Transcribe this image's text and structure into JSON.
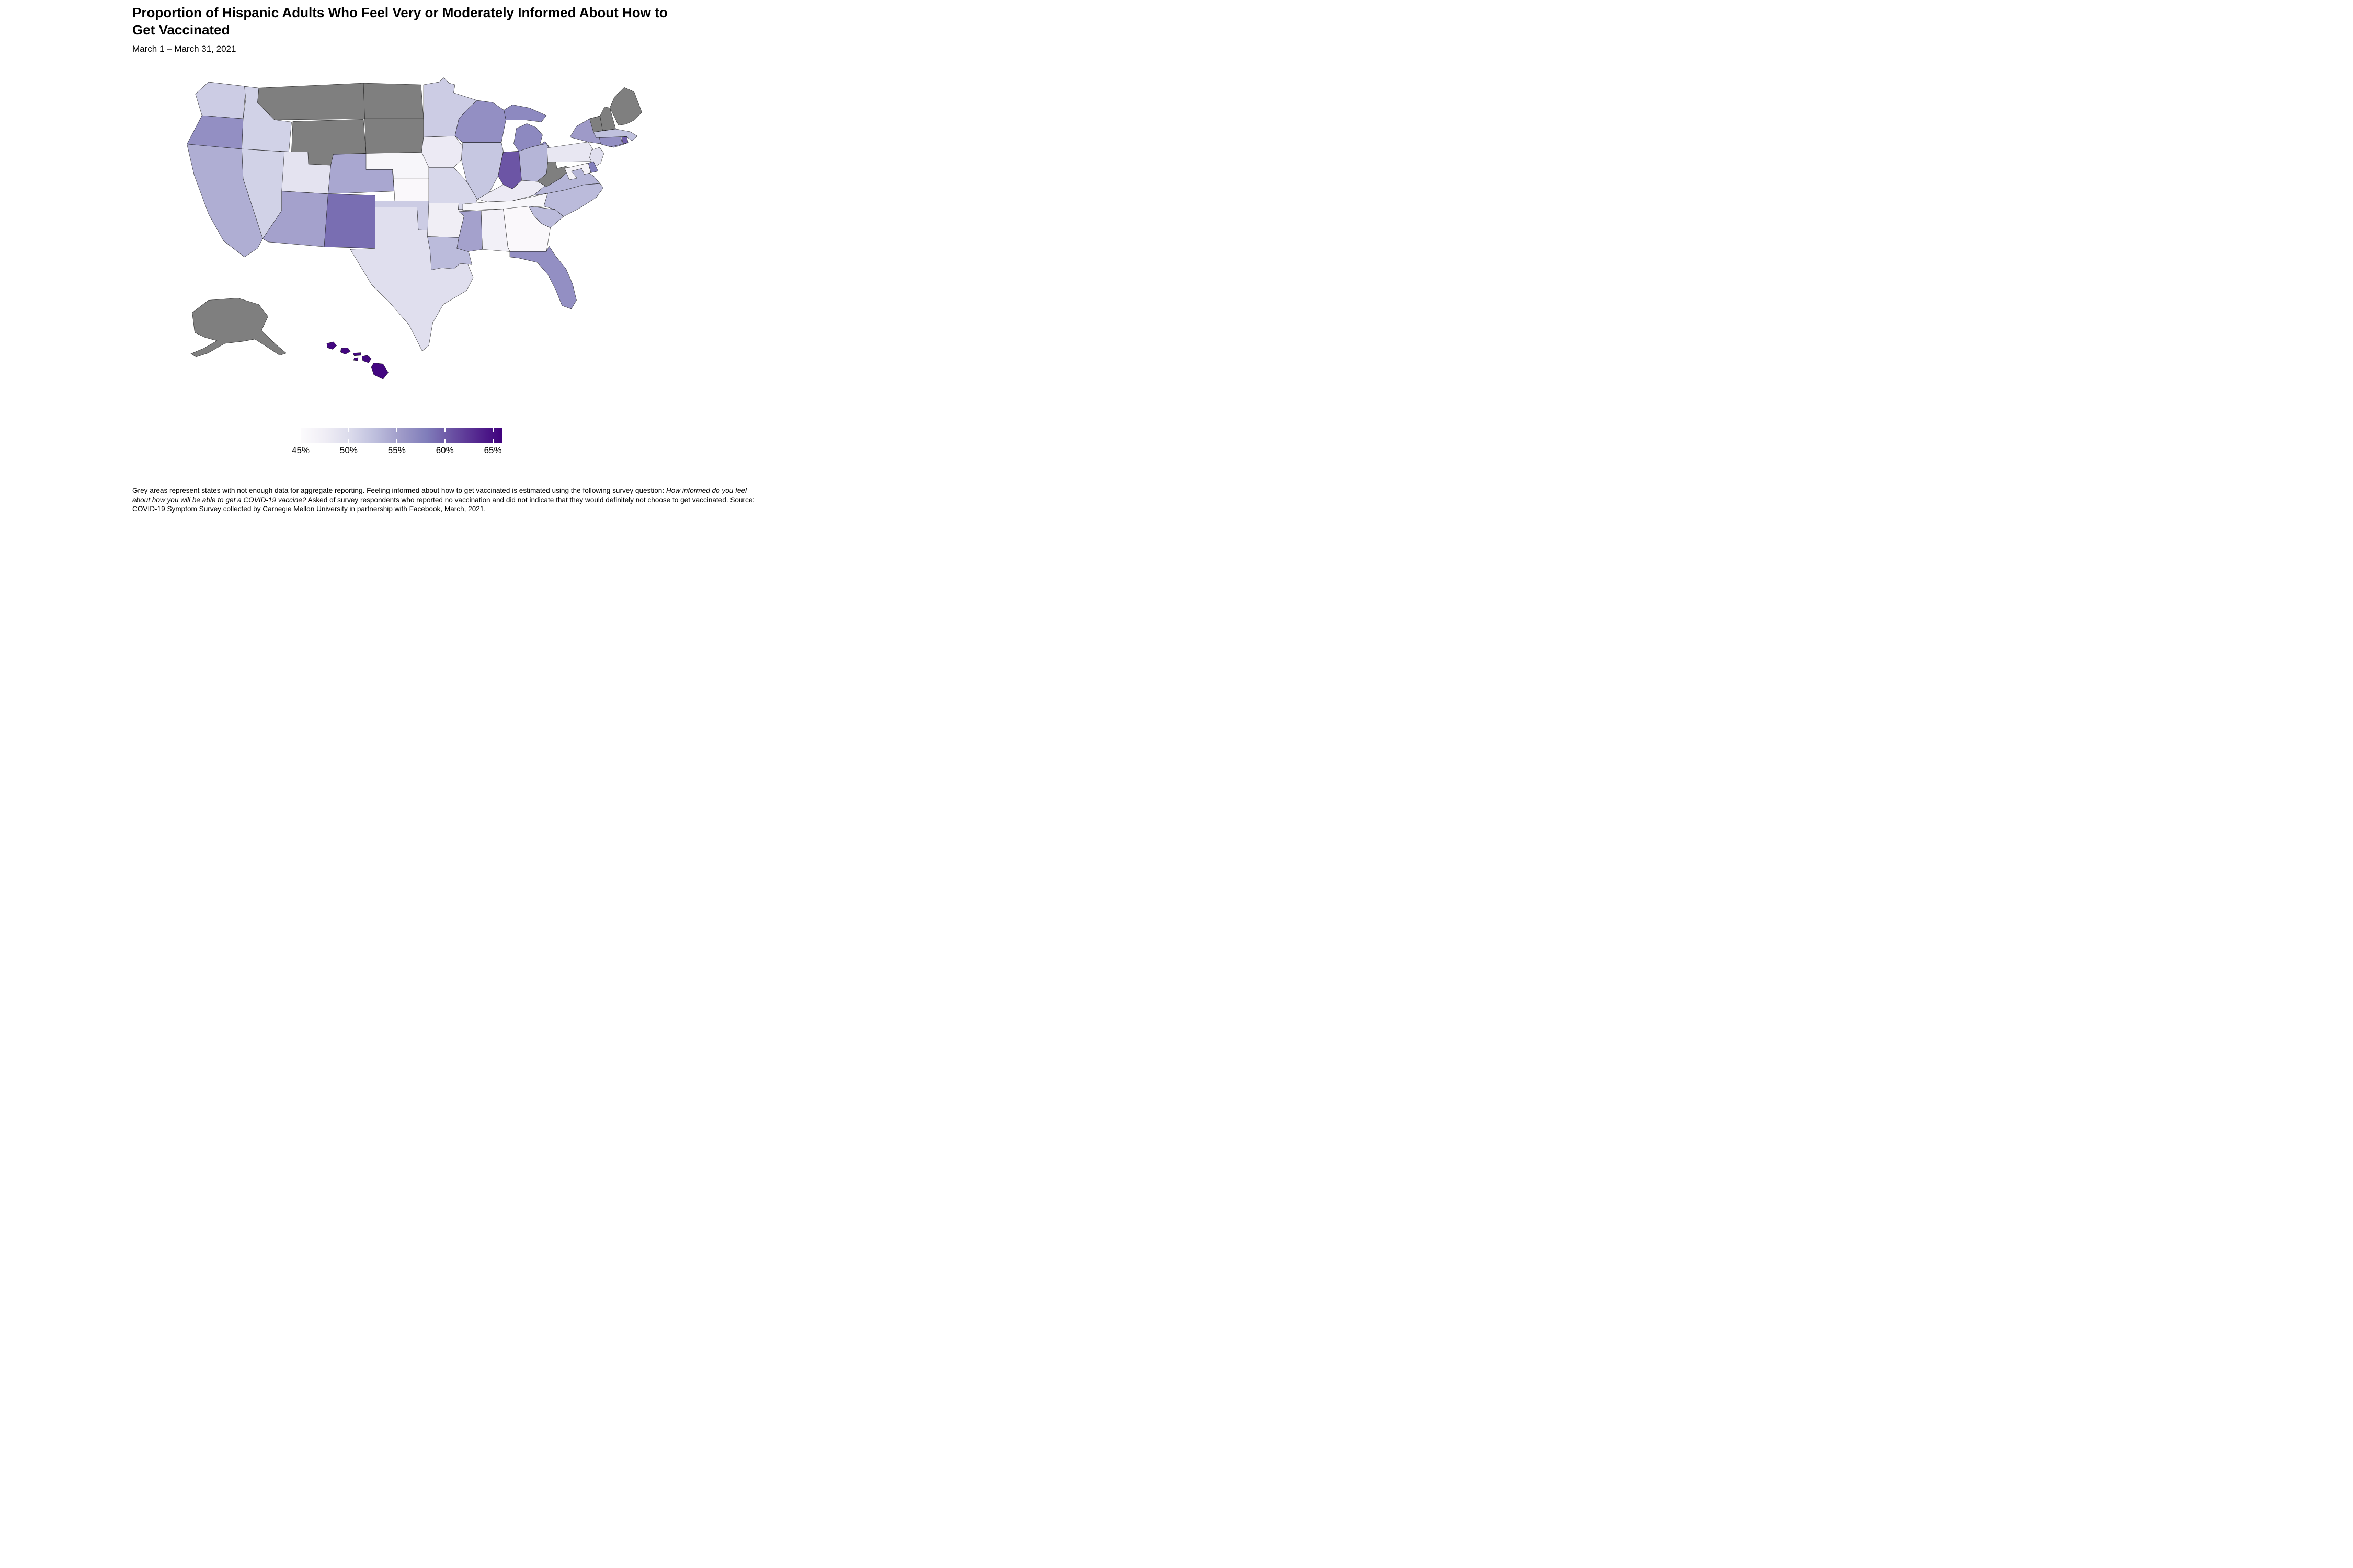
{
  "header": {
    "title": "Proportion of Hispanic Adults Who Feel Very or Moderately Informed About How to Get Vaccinated",
    "subtitle": "March 1 – March 31, 2021"
  },
  "legend": {
    "domain": [
      45,
      66
    ],
    "tick_values": [
      45,
      50,
      55,
      60,
      65
    ],
    "tick_labels": [
      "45%",
      "50%",
      "55%",
      "60%",
      "65%"
    ],
    "gradient_stops": [
      "#fcfbfd",
      "#efedf5",
      "#dadaeb",
      "#bcbddc",
      "#9e9ac8",
      "#807dba",
      "#6a51a3",
      "#54278f",
      "#3f007d"
    ],
    "no_data_color": "#7f7f7f",
    "tick_mark_color": "#ffffff"
  },
  "footnote": {
    "part1": "Grey areas represent states with not enough data for aggregate reporting. Feeling informed about how to get vaccinated is estimated using the following survey question: ",
    "italic": "How informed do you feel about how you will be able to get a COVID-19 vaccine?",
    "part2": " Asked of survey respondents who reported no vaccination and did not indicate that they would definitely not choose to get vaccinated. Source: COVID-19 Symptom Survey collected by Carnegie Mellon University in partnership with Facebook, March, 2021."
  },
  "chart_data": {
    "type": "choropleth",
    "title": "Proportion of Hispanic Adults Who Feel Very or Moderately Informed About How to Get Vaccinated",
    "subtitle": "March 1 – March 31, 2021",
    "unit": "percent",
    "value_range_shown": [
      45,
      65
    ],
    "no_data_note": "Grey areas represent states with not enough data for aggregate reporting.",
    "states": [
      {
        "abbr": "AL",
        "name": "Alabama",
        "value": 47
      },
      {
        "abbr": "AK",
        "name": "Alaska",
        "value": null
      },
      {
        "abbr": "AZ",
        "name": "Arizona",
        "value": 55
      },
      {
        "abbr": "AR",
        "name": "Arkansas",
        "value": 47.5
      },
      {
        "abbr": "CA",
        "name": "California",
        "value": 54
      },
      {
        "abbr": "CO",
        "name": "Colorado",
        "value": 54.5
      },
      {
        "abbr": "CT",
        "name": "Connecticut",
        "value": 56.5
      },
      {
        "abbr": "DE",
        "name": "Delaware",
        "value": 58
      },
      {
        "abbr": "FL",
        "name": "Florida",
        "value": 56.5
      },
      {
        "abbr": "GA",
        "name": "Georgia",
        "value": 45.5
      },
      {
        "abbr": "HI",
        "name": "Hawaii",
        "value": 65.5
      },
      {
        "abbr": "ID",
        "name": "Idaho",
        "value": 51
      },
      {
        "abbr": "IL",
        "name": "Illinois",
        "value": 52
      },
      {
        "abbr": "IN",
        "name": "Indiana",
        "value": 60.5
      },
      {
        "abbr": "IA",
        "name": "Iowa",
        "value": 48
      },
      {
        "abbr": "KS",
        "name": "Kansas",
        "value": 45.5
      },
      {
        "abbr": "KY",
        "name": "Kentucky",
        "value": 48
      },
      {
        "abbr": "LA",
        "name": "Louisiana",
        "value": 53
      },
      {
        "abbr": "ME",
        "name": "Maine",
        "value": null
      },
      {
        "abbr": "MD",
        "name": "Maryland",
        "value": 46.5
      },
      {
        "abbr": "MA",
        "name": "Massachusetts",
        "value": 52.5
      },
      {
        "abbr": "MI",
        "name": "Michigan",
        "value": 57
      },
      {
        "abbr": "MN",
        "name": "Minnesota",
        "value": 51.5
      },
      {
        "abbr": "MS",
        "name": "Mississippi",
        "value": 55
      },
      {
        "abbr": "MO",
        "name": "Missouri",
        "value": 50.5
      },
      {
        "abbr": "MT",
        "name": "Montana",
        "value": null
      },
      {
        "abbr": "NE",
        "name": "Nebraska",
        "value": 46
      },
      {
        "abbr": "NV",
        "name": "Nevada",
        "value": 51
      },
      {
        "abbr": "NH",
        "name": "New Hampshire",
        "value": null
      },
      {
        "abbr": "NJ",
        "name": "New Jersey",
        "value": 49.5
      },
      {
        "abbr": "NM",
        "name": "New Mexico",
        "value": 59
      },
      {
        "abbr": "NY",
        "name": "New York",
        "value": 55.5
      },
      {
        "abbr": "NC",
        "name": "North Carolina",
        "value": 53
      },
      {
        "abbr": "ND",
        "name": "North Dakota",
        "value": null
      },
      {
        "abbr": "OH",
        "name": "Ohio",
        "value": 53.5
      },
      {
        "abbr": "OK",
        "name": "Oklahoma",
        "value": 51.5
      },
      {
        "abbr": "OR",
        "name": "Oregon",
        "value": 56.5
      },
      {
        "abbr": "PA",
        "name": "Pennsylvania",
        "value": 48.5
      },
      {
        "abbr": "RI",
        "name": "Rhode Island",
        "value": 60
      },
      {
        "abbr": "SC",
        "name": "South Carolina",
        "value": 53
      },
      {
        "abbr": "SD",
        "name": "South Dakota",
        "value": null
      },
      {
        "abbr": "TN",
        "name": "Tennessee",
        "value": 46
      },
      {
        "abbr": "TX",
        "name": "Texas",
        "value": 49.5
      },
      {
        "abbr": "UT",
        "name": "Utah",
        "value": 49
      },
      {
        "abbr": "VT",
        "name": "Vermont",
        "value": null
      },
      {
        "abbr": "VA",
        "name": "Virginia",
        "value": 53.5
      },
      {
        "abbr": "WA",
        "name": "Washington",
        "value": 51.5
      },
      {
        "abbr": "WV",
        "name": "West Virginia",
        "value": null
      },
      {
        "abbr": "WI",
        "name": "Wisconsin",
        "value": 56.5
      },
      {
        "abbr": "WY",
        "name": "Wyoming",
        "value": null
      }
    ]
  }
}
